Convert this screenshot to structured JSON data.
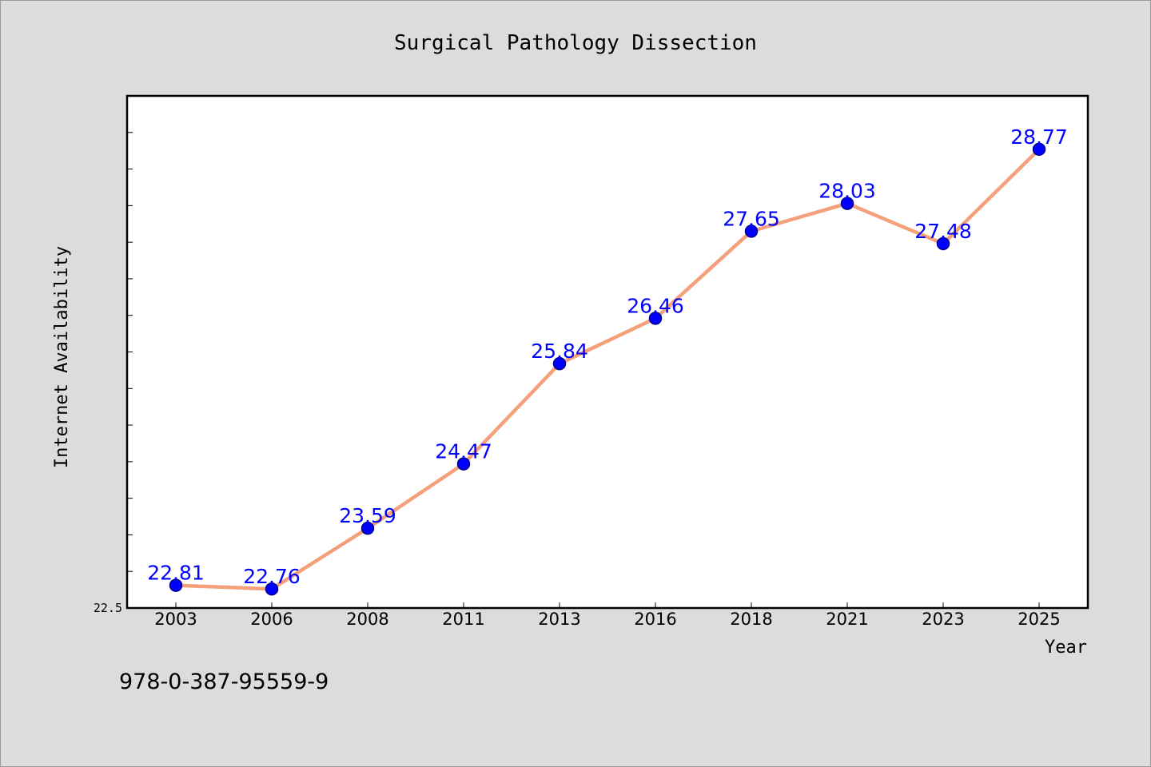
{
  "chart_data": {
    "type": "line",
    "title": "Surgical Pathology Dissection",
    "xlabel": "Year",
    "ylabel": "Internet Availability",
    "categories": [
      "2003",
      "2006",
      "2008",
      "2011",
      "2013",
      "2016",
      "2018",
      "2021",
      "2023",
      "2025"
    ],
    "series": [
      {
        "values": [
          22.81,
          22.76,
          23.59,
          24.47,
          25.84,
          26.46,
          27.65,
          28.03,
          27.48,
          28.77
        ]
      }
    ],
    "data_labels": [
      "22.81",
      "22.76",
      "23.59",
      "24.47",
      "25.84",
      "26.46",
      "27.65",
      "28.03",
      "27.48",
      "28.77"
    ],
    "ylim": [
      22.5,
      29.5
    ],
    "ytick_labels": [
      "22.5"
    ],
    "minor_tick_step": 0.5,
    "grid": false,
    "colors": {
      "line": "#f4a07a",
      "marker": "#0000ff",
      "marker_edge": "#00008b",
      "data_label": "#0000ff",
      "plot_background": "#ffffff",
      "figure_background": "#dcdcdc"
    }
  },
  "footer": {
    "isbn": "978-0-387-95559-9"
  }
}
